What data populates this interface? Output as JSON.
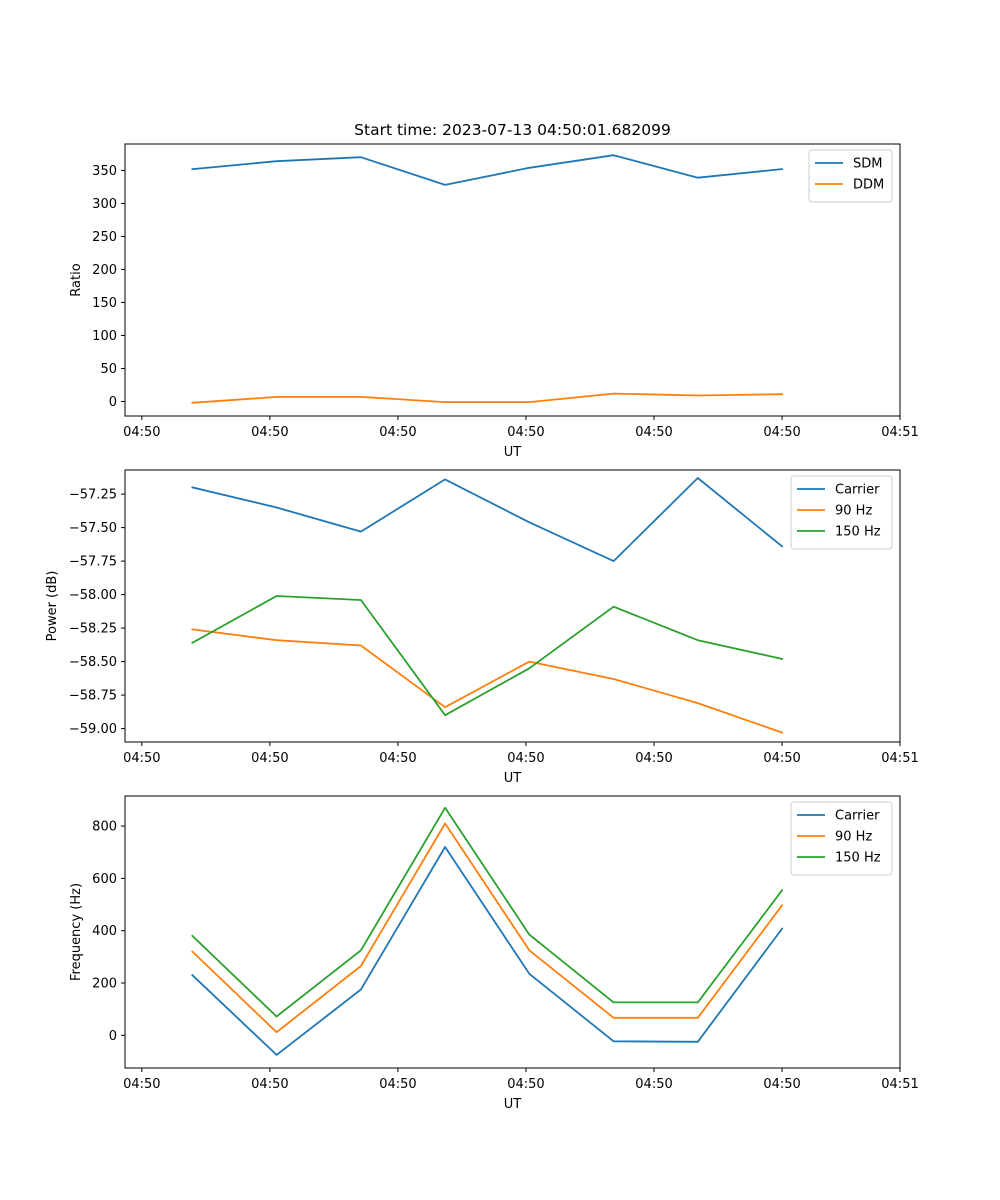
{
  "colors": {
    "blue": "#1f77b4",
    "orange": "#ff7f0e",
    "green": "#2ca02c"
  },
  "chart_data": [
    {
      "type": "line",
      "title": "Start time: 2023-07-13 04:50:01.682099",
      "xlabel": "UT",
      "ylabel": "Ratio",
      "x": [
        1,
        2,
        3,
        4,
        5,
        6,
        7,
        8
      ],
      "xlim": [
        0.2,
        9.4
      ],
      "xticks": [
        0.4,
        1.92,
        3.44,
        4.96,
        6.48,
        8.0,
        9.4
      ],
      "xtick_labels": [
        "04:50",
        "04:50",
        "04:50",
        "04:50",
        "04:50",
        "04:50",
        "04:51"
      ],
      "ylim": [
        -22,
        390
      ],
      "yticks": [
        0,
        50,
        100,
        150,
        200,
        250,
        300,
        350
      ],
      "ytick_labels": [
        "0",
        "50",
        "100",
        "150",
        "200",
        "250",
        "300",
        "350"
      ],
      "legend_loc": "upper right",
      "series": [
        {
          "name": "SDM",
          "color": "blue",
          "values": [
            352,
            364,
            370,
            328,
            354,
            373,
            339,
            352
          ]
        },
        {
          "name": "DDM",
          "color": "orange",
          "values": [
            -2,
            7,
            7,
            -1,
            -1,
            12,
            9,
            11
          ]
        }
      ]
    },
    {
      "type": "line",
      "title": "",
      "xlabel": "UT",
      "ylabel": "Power (dB)",
      "x": [
        1,
        2,
        3,
        4,
        5,
        6,
        7,
        8
      ],
      "xlim": [
        0.2,
        9.4
      ],
      "xticks": [
        0.4,
        1.92,
        3.44,
        4.96,
        6.48,
        8.0,
        9.4
      ],
      "xtick_labels": [
        "04:50",
        "04:50",
        "04:50",
        "04:50",
        "04:50",
        "04:50",
        "04:51"
      ],
      "ylim": [
        -59.1,
        -57.07
      ],
      "yticks": [
        -57.25,
        -57.5,
        -57.75,
        -58.0,
        -58.25,
        -58.5,
        -58.75,
        -59.0
      ],
      "ytick_labels": [
        "−57.25",
        "−57.50",
        "−57.75",
        "−58.00",
        "−58.25",
        "−58.50",
        "−58.75",
        "−59.00"
      ],
      "legend_loc": "upper right",
      "series": [
        {
          "name": "Carrier",
          "color": "blue",
          "values": [
            -57.2,
            -57.35,
            -57.53,
            -57.14,
            -57.46,
            -57.75,
            -57.13,
            -57.64
          ]
        },
        {
          "name": "90 Hz",
          "color": "orange",
          "values": [
            -58.26,
            -58.34,
            -58.38,
            -58.84,
            -58.5,
            -58.63,
            -58.81,
            -59.03
          ]
        },
        {
          "name": "150 Hz",
          "color": "green",
          "values": [
            -58.36,
            -58.01,
            -58.04,
            -58.9,
            -58.55,
            -58.09,
            -58.34,
            -58.48
          ]
        }
      ]
    },
    {
      "type": "line",
      "title": "",
      "xlabel": "UT",
      "ylabel": "Frequency (Hz)",
      "x": [
        1,
        2,
        3,
        4,
        5,
        6,
        7,
        8
      ],
      "xlim": [
        0.2,
        9.4
      ],
      "xticks": [
        0.4,
        1.92,
        3.44,
        4.96,
        6.48,
        8.0,
        9.4
      ],
      "xtick_labels": [
        "04:50",
        "04:50",
        "04:50",
        "04:50",
        "04:50",
        "04:50",
        "04:51"
      ],
      "ylim": [
        -125,
        915
      ],
      "yticks": [
        0,
        200,
        400,
        600,
        800
      ],
      "ytick_labels": [
        "0",
        "200",
        "400",
        "600",
        "800"
      ],
      "legend_loc": "upper right",
      "series": [
        {
          "name": "Carrier",
          "color": "blue",
          "values": [
            230,
            -75,
            175,
            720,
            235,
            -23,
            -25,
            408
          ]
        },
        {
          "name": "90 Hz",
          "color": "orange",
          "values": [
            320,
            12,
            265,
            810,
            325,
            67,
            67,
            497
          ]
        },
        {
          "name": "150 Hz",
          "color": "green",
          "values": [
            380,
            72,
            325,
            870,
            385,
            126,
            126,
            555
          ]
        }
      ]
    }
  ]
}
